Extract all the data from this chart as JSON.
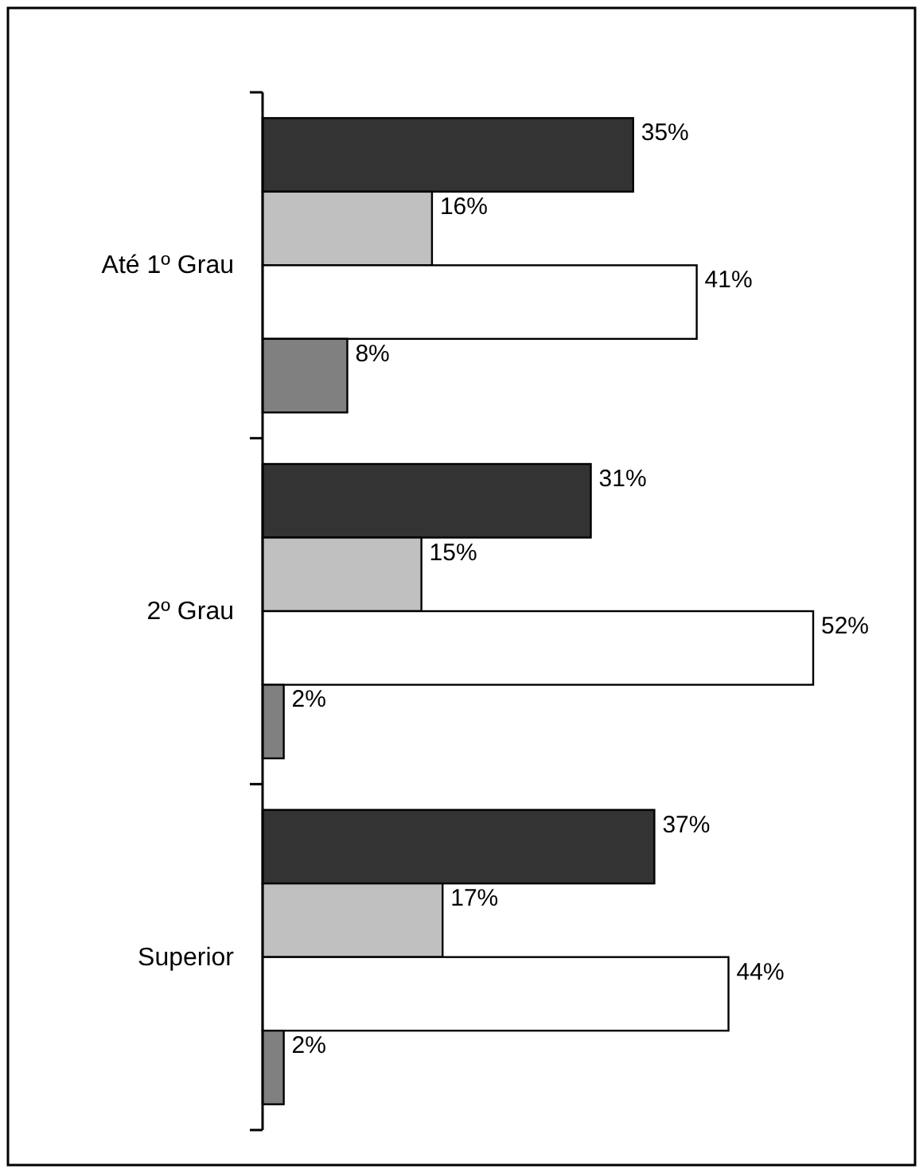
{
  "chart_data": {
    "type": "bar",
    "orientation": "horizontal",
    "categories": [
      "Até 1º Grau",
      "2º Grau",
      "Superior"
    ],
    "series": [
      {
        "color": "#333333",
        "values": [
          35,
          31,
          37
        ],
        "value_labels": [
          "35%",
          "31%",
          "37%"
        ]
      },
      {
        "color": "#c0c0c0",
        "values": [
          16,
          15,
          17
        ],
        "value_labels": [
          "16%",
          "15%",
          "17%"
        ]
      },
      {
        "color": "#ffffff",
        "values": [
          41,
          52,
          44
        ],
        "value_labels": [
          "41%",
          "52%",
          "44%"
        ]
      },
      {
        "color": "#808080",
        "values": [
          8,
          2,
          2
        ],
        "value_labels": [
          "8%",
          "2%",
          "2%"
        ]
      }
    ]
  }
}
